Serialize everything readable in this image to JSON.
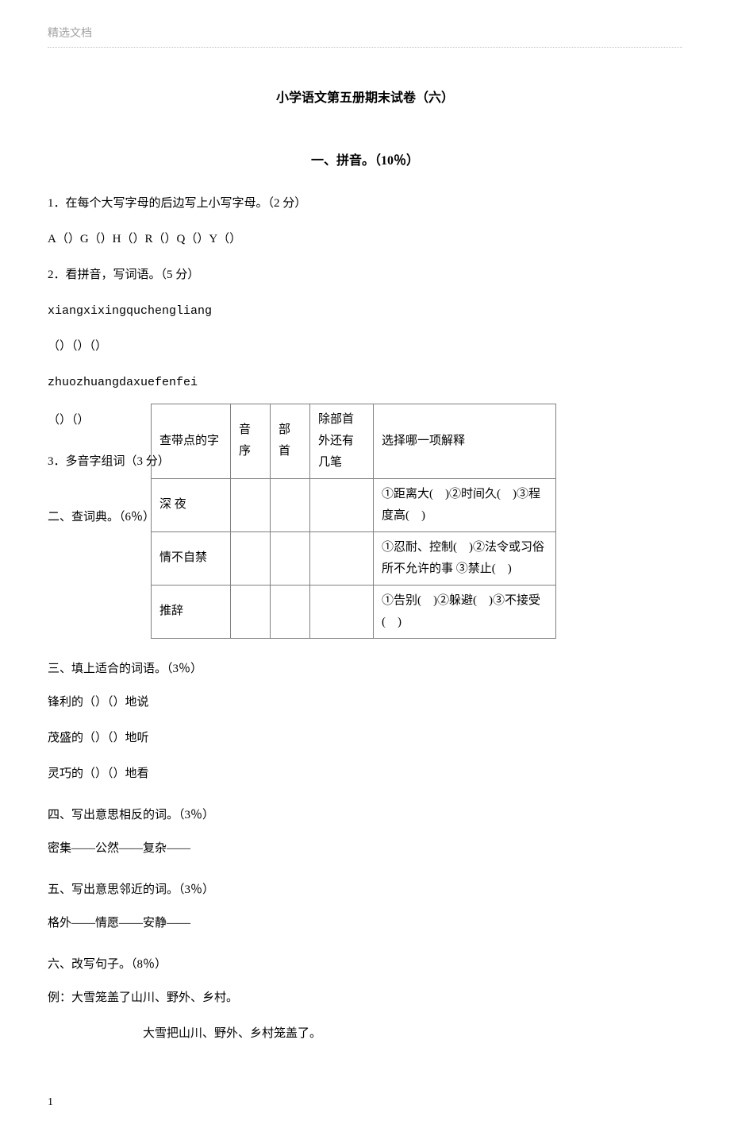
{
  "header": {
    "label": "精选文档"
  },
  "title": "小学语文第五册期末试卷（六）",
  "section1": {
    "heading": "一、拼音。（10％）",
    "q1": "1．在每个大写字母的后边写上小写字母。（2 分）",
    "q1_content": "A（）G（）H（）R（）Q（）Y（）",
    "q2": "2．看拼音，写词语。（5 分）",
    "q2_pinyin1": "xiangxixingquchengliang",
    "q2_blanks1": "（）（）（）",
    "q2_pinyin2": "zhuozhuangdaxuefenfei",
    "q2_blanks2": "（）（）",
    "q3": "3．多音字组词（3 分）"
  },
  "section2": {
    "heading": "二、查词典。（6％）",
    "table": {
      "headers": [
        "查带点的字",
        "音序",
        "部首",
        "除部首外还有几笔",
        "选择哪一项解释"
      ],
      "rows": [
        {
          "word": "深 夜",
          "meaning": "①距离大(　)②时间久(　)③程度高(　)"
        },
        {
          "word": "情不自禁",
          "meaning": "①忍耐、控制(　)②法令或习俗所不允许的事 ③禁止(　)"
        },
        {
          "word": "推辞",
          "meaning": "①告别(　)②躲避(　)③不接受(　)"
        }
      ]
    }
  },
  "section3": {
    "heading": "三、填上适合的词语。（3％）",
    "line1": "锋利的（）（）地说",
    "line2": "茂盛的（）（）地听",
    "line3": "灵巧的（）（）地看"
  },
  "section4": {
    "heading": "四、写出意思相反的词。（3％）",
    "content": "密集——公然——复杂——"
  },
  "section5": {
    "heading": "五、写出意思邻近的词。（3％）",
    "content": "格外——情愿——安静——"
  },
  "section6": {
    "heading": "六、改写句子。（8％）",
    "example_label": "例：大雪笼盖了山川、野外、乡村。",
    "example_answer": "大雪把山川、野外、乡村笼盖了。"
  },
  "footer": {
    "page": "1"
  }
}
